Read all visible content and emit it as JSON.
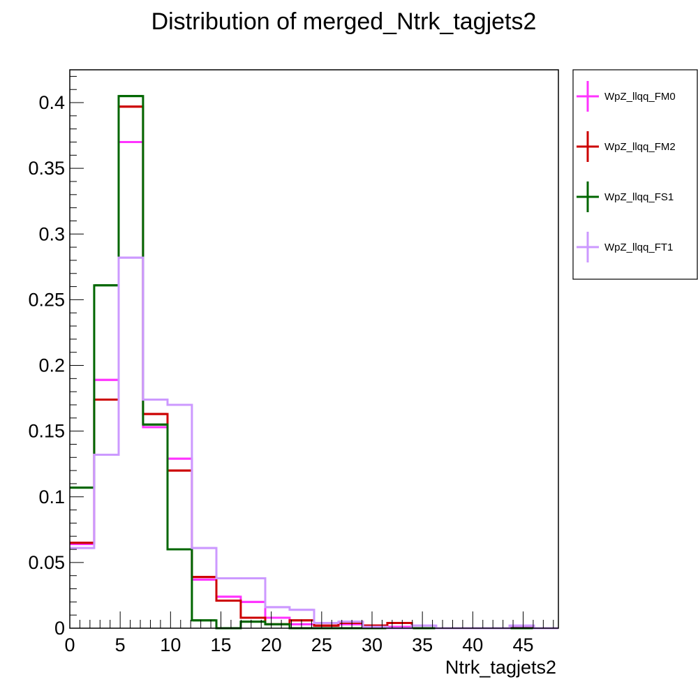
{
  "chart_data": {
    "type": "line",
    "title": "Distribution of merged_Ntrk_tagjets2",
    "xlabel": "Ntrk_tagjets2",
    "ylabel": "",
    "xlim": [
      0,
      48.5
    ],
    "ylim": [
      0,
      0.425
    ],
    "x_ticks": [
      0,
      5,
      10,
      15,
      20,
      25,
      30,
      35,
      40,
      45
    ],
    "x_tick_labels": [
      "0",
      "5",
      "10",
      "15",
      "20",
      "25",
      "30",
      "35",
      "40",
      "45"
    ],
    "y_ticks": [
      0,
      0.05,
      0.1,
      0.15,
      0.2,
      0.25,
      0.3,
      0.35,
      0.4
    ],
    "y_tick_labels": [
      "0",
      "0.05",
      "0.1",
      "0.15",
      "0.2",
      "0.25",
      "0.3",
      "0.35",
      "0.4"
    ],
    "bin_edges": [
      0,
      2.42,
      4.85,
      7.27,
      9.7,
      12.12,
      14.55,
      16.97,
      19.4,
      21.82,
      24.25,
      26.67,
      29.1,
      31.52,
      33.95,
      36.37,
      38.8,
      41.22,
      43.65,
      46.07,
      48.5
    ],
    "legend_position": "right",
    "series": [
      {
        "name": "WpZ_llqq_FM0",
        "color": "#ff33ff",
        "values": [
          0.064,
          0.189,
          0.37,
          0.153,
          0.129,
          0.037,
          0.024,
          0.02,
          0.008,
          0.003,
          0.002,
          0.003,
          0.002,
          0.001,
          0.0,
          0.0,
          0.0,
          0.0,
          0.001,
          0.0
        ]
      },
      {
        "name": "WpZ_llqq_FM2",
        "color": "#cc0000",
        "values": [
          0.065,
          0.174,
          0.397,
          0.163,
          0.12,
          0.039,
          0.021,
          0.008,
          0.003,
          0.006,
          0.002,
          0.004,
          0.002,
          0.004,
          0.0,
          0.0,
          0.0,
          0.0,
          0.0,
          0.0
        ]
      },
      {
        "name": "WpZ_llqq_FS1",
        "color": "#006600",
        "values": [
          0.107,
          0.261,
          0.405,
          0.155,
          0.06,
          0.006,
          0.0,
          0.005,
          0.003,
          0.0,
          0.0,
          0.0,
          0.0,
          0.0,
          0.0,
          0.0,
          0.0,
          0.0,
          0.0,
          0.0
        ]
      },
      {
        "name": "WpZ_llqq_FT1",
        "color": "#cc99ff",
        "values": [
          0.061,
          0.132,
          0.282,
          0.174,
          0.17,
          0.061,
          0.038,
          0.038,
          0.016,
          0.014,
          0.004,
          0.005,
          0.001,
          0.0,
          0.002,
          0.0,
          0.0,
          0.0,
          0.002,
          0.0
        ]
      }
    ]
  }
}
